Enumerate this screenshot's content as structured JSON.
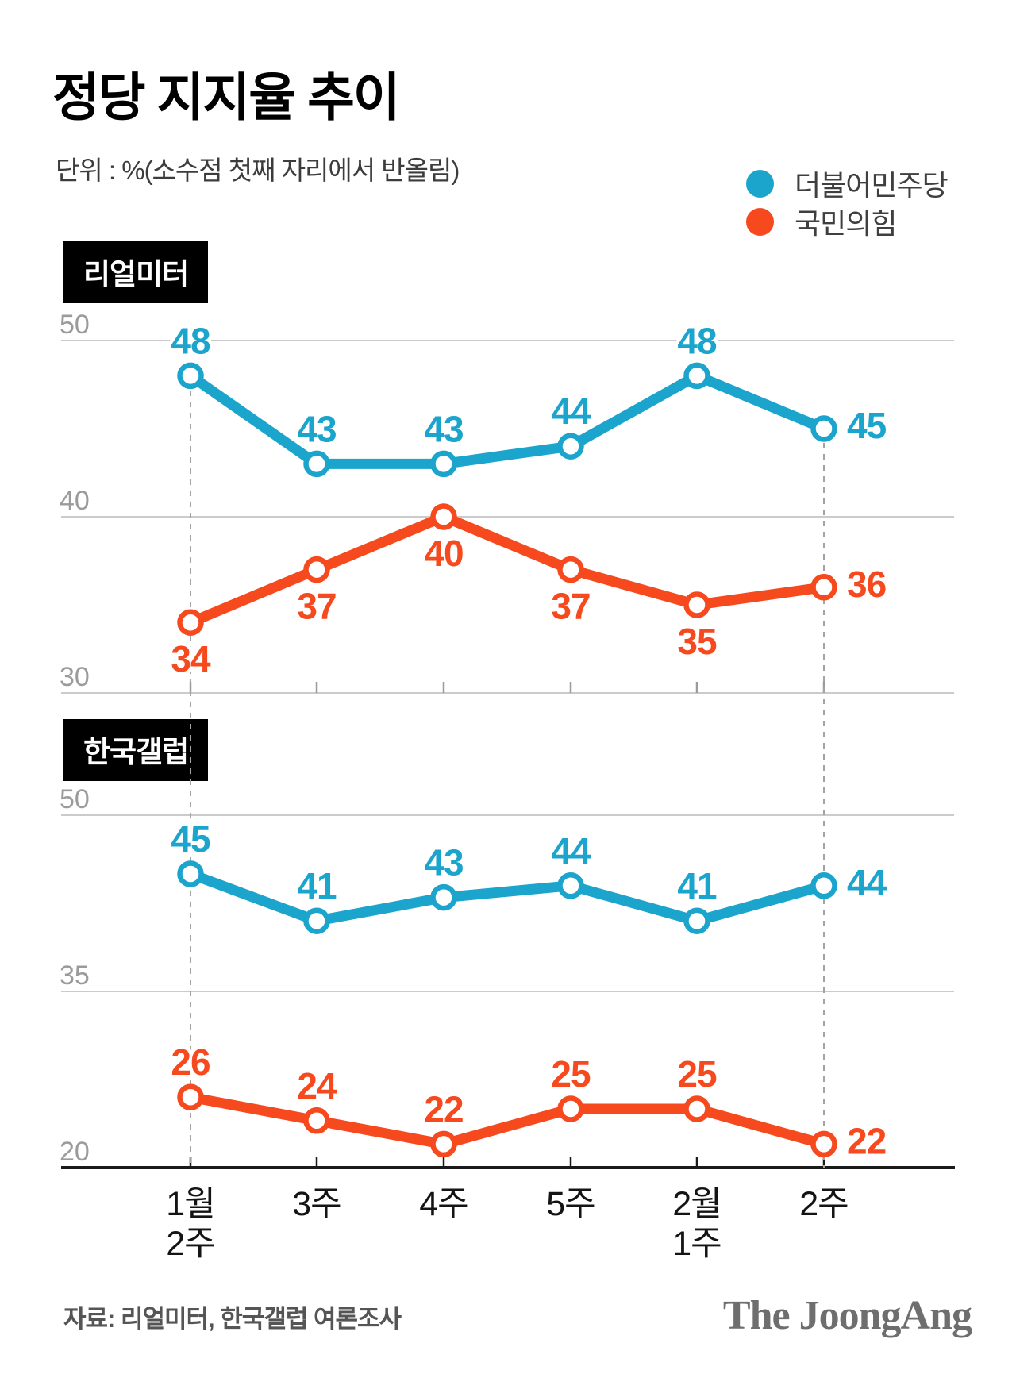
{
  "title": "정당 지지율 추이",
  "subtitle": "단위 : %(소수점 첫째 자리에서 반올림)",
  "legend": {
    "items": [
      {
        "label": "더불어민주당",
        "color": "#1BA4CC"
      },
      {
        "label": "국민의힘",
        "color": "#F6491E"
      }
    ]
  },
  "source_note": "자료: 리얼미터, 한국갤럽 여론조사",
  "publisher_logo": "The JoongAng",
  "colors": {
    "democratic_blue": "#1BA4CC",
    "ppp_orange": "#F6491E",
    "gridline": "#CBCBCB",
    "axis_black": "#1A1A1A",
    "axis_tick_label": "#9B9B9B",
    "dashed_guide": "#A3A3A3",
    "x_label": "#141414"
  },
  "x_axis": {
    "tick_labels": [
      [
        "1월",
        "2주"
      ],
      [
        "3주"
      ],
      [
        "4주"
      ],
      [
        "5주"
      ],
      [
        "2월",
        "1주"
      ],
      [
        "2주"
      ]
    ]
  },
  "chart_data": [
    {
      "type": "line",
      "panel_label": "리얼미터",
      "unit": "%",
      "categories": [
        "1월 2주",
        "3주",
        "4주",
        "5주",
        "2월 1주",
        "2주"
      ],
      "yticks": [
        50,
        40,
        30
      ],
      "series": [
        {
          "name": "더불어민주당",
          "color": "#1BA4CC",
          "values": [
            48,
            43,
            43,
            44,
            48,
            45
          ],
          "label_position": [
            "above",
            "above",
            "above",
            "above",
            "above",
            "right"
          ]
        },
        {
          "name": "국민의힘",
          "color": "#F6491E",
          "values": [
            34,
            37,
            40,
            37,
            35,
            36
          ],
          "label_position": [
            "below",
            "below",
            "below",
            "below",
            "below",
            "right"
          ]
        }
      ]
    },
    {
      "type": "line",
      "panel_label": "한국갤럽",
      "unit": "%",
      "categories": [
        "1월 2주",
        "3주",
        "4주",
        "5주",
        "2월 1주",
        "2주"
      ],
      "yticks": [
        50,
        35,
        20
      ],
      "series": [
        {
          "name": "더불어민주당",
          "color": "#1BA4CC",
          "values": [
            45,
            41,
            43,
            44,
            41,
            44
          ],
          "label_position": [
            "above",
            "above",
            "above",
            "above",
            "above",
            "right"
          ]
        },
        {
          "name": "국민의힘",
          "color": "#F6491E",
          "values": [
            26,
            24,
            22,
            25,
            25,
            22
          ],
          "label_position": [
            "above",
            "above",
            "above",
            "above",
            "above",
            "right"
          ]
        }
      ]
    }
  ]
}
